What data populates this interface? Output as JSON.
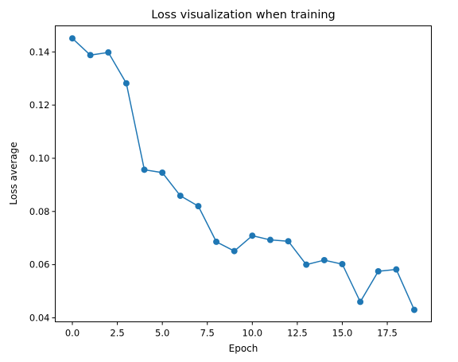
{
  "chart_data": {
    "type": "line",
    "title": "Loss visualization when training",
    "xlabel": "Epoch",
    "ylabel": "Loss average",
    "xlim": [
      -0.95,
      19.95
    ],
    "ylim": [
      0.0385,
      0.1498
    ],
    "grid": false,
    "x_ticks": [
      0.0,
      2.5,
      5.0,
      7.5,
      10.0,
      12.5,
      15.0,
      17.5
    ],
    "x_tick_labels": [
      "0.0",
      "2.5",
      "5.0",
      "7.5",
      "10.0",
      "12.5",
      "15.0",
      "17.5"
    ],
    "y_ticks": [
      0.04,
      0.06,
      0.08,
      0.1,
      0.12,
      0.14
    ],
    "y_tick_labels": [
      "0.04",
      "0.06",
      "0.08",
      "0.10",
      "0.12",
      "0.14"
    ],
    "series": [
      {
        "color": "#1f77b4",
        "marker": "circle",
        "x": [
          0,
          1,
          2,
          3,
          4,
          5,
          6,
          7,
          8,
          9,
          10,
          11,
          12,
          13,
          14,
          15,
          16,
          17,
          18,
          19
        ],
        "values": [
          0.1451,
          0.1388,
          0.1398,
          0.1282,
          0.0957,
          0.0946,
          0.0859,
          0.082,
          0.0686,
          0.0651,
          0.0709,
          0.0693,
          0.0688,
          0.06,
          0.0617,
          0.0602,
          0.046,
          0.0575,
          0.0582,
          0.043
        ]
      }
    ]
  }
}
